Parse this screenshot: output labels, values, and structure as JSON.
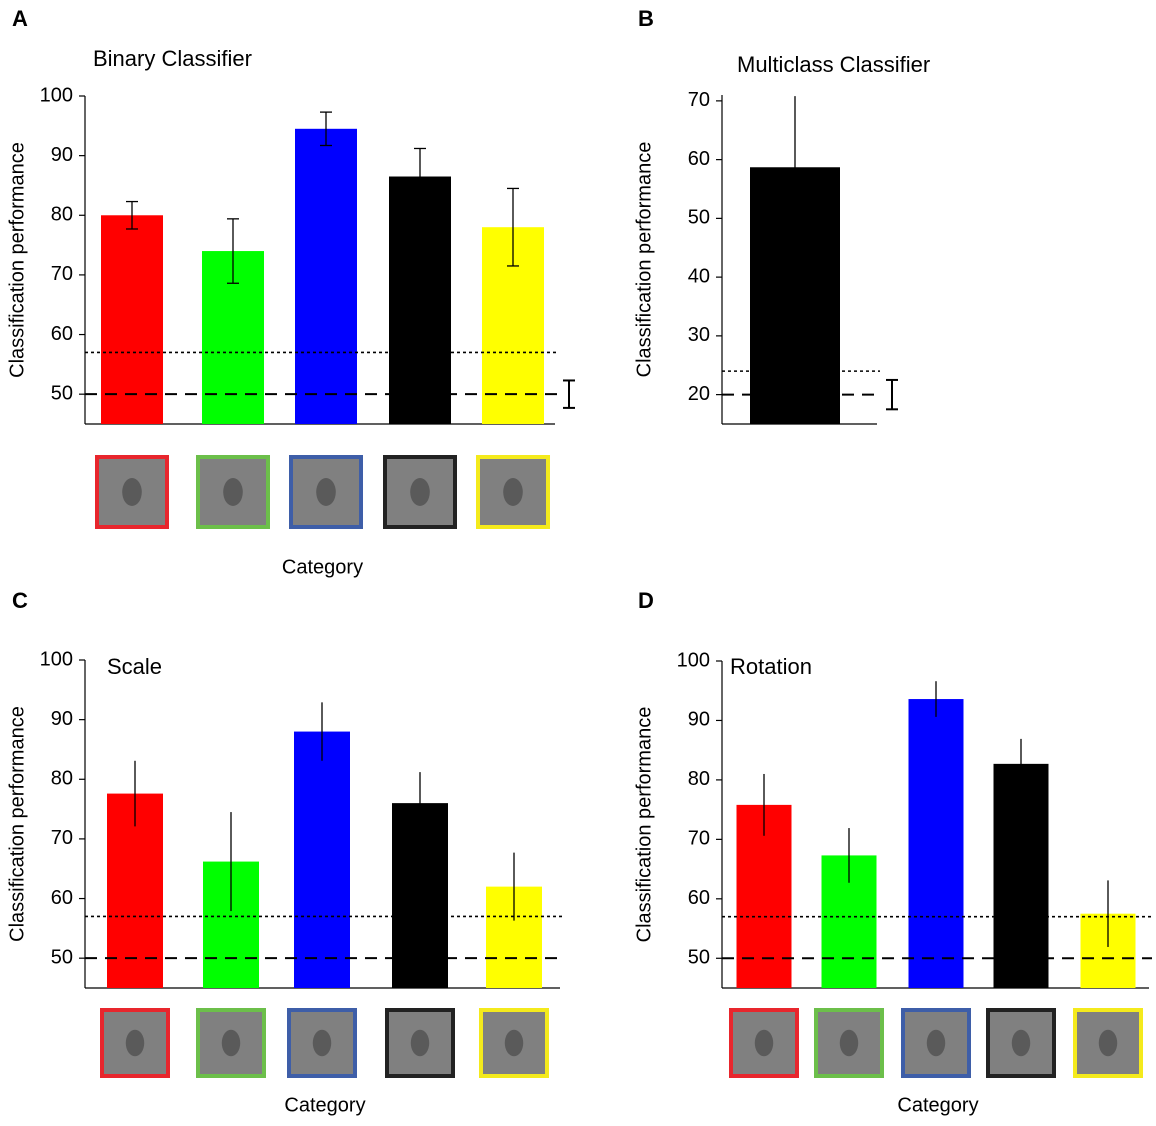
{
  "chart_data": [
    {
      "type": "bar",
      "panel": "A",
      "title": "Binary Classifier",
      "y_label": "Classification performance",
      "x_label": "Category",
      "categories": [
        null,
        null,
        null,
        null,
        null
      ],
      "values": [
        80,
        74,
        94.5,
        86.5,
        78
      ],
      "errors": [
        2.3,
        5.4,
        2.8,
        4.7,
        6.5
      ],
      "colors": [
        "#ff0000",
        "#00ff00",
        "#0000ff",
        "#000000",
        "#ffff00"
      ],
      "thumbnail_borders": [
        "#e8262d",
        "#6cbf4a",
        "#3e5ea8",
        "#222222",
        "#f4ea1c"
      ],
      "ylim": [
        45,
        100
      ],
      "yticks": [
        50,
        60,
        70,
        80,
        90,
        100
      ],
      "reference_lines": [
        {
          "value": 57,
          "style": "dotted"
        },
        {
          "value": 50,
          "style": "dashed"
        }
      ],
      "chance_interval": {
        "value": 50,
        "error": 2.3
      }
    },
    {
      "type": "bar",
      "panel": "B",
      "title": "Multiclass Classifier",
      "y_label": "Classification performance",
      "categories": [
        null
      ],
      "values": [
        58.7
      ],
      "errors": [
        12.1
      ],
      "colors": [
        "#000000"
      ],
      "ylim": [
        15,
        71
      ],
      "yticks": [
        20,
        30,
        40,
        50,
        60,
        70
      ],
      "reference_lines": [
        {
          "value": 24,
          "style": "dotted"
        },
        {
          "value": 20,
          "style": "dashed"
        }
      ],
      "chance_interval": {
        "value": 20,
        "error": 2.5
      }
    },
    {
      "type": "bar",
      "panel": "C",
      "title": "Scale",
      "y_label": "Classification performance",
      "x_label": "Category",
      "categories": [
        null,
        null,
        null,
        null,
        null
      ],
      "values": [
        77.6,
        66.2,
        88,
        76,
        62
      ],
      "errors": [
        5.5,
        8.3,
        4.9,
        5.2,
        5.7
      ],
      "colors": [
        "#ff0000",
        "#00ff00",
        "#0000ff",
        "#000000",
        "#ffff00"
      ],
      "thumbnail_borders": [
        "#e8262d",
        "#6cbf4a",
        "#3e5ea8",
        "#222222",
        "#f4ea1c"
      ],
      "ylim": [
        45,
        100
      ],
      "yticks": [
        50,
        60,
        70,
        80,
        90,
        100
      ],
      "reference_lines": [
        {
          "value": 57,
          "style": "dotted"
        },
        {
          "value": 50,
          "style": "dashed"
        }
      ]
    },
    {
      "type": "bar",
      "panel": "D",
      "title": "Rotation",
      "y_label": "Classification performance",
      "x_label": "Category",
      "categories": [
        null,
        null,
        null,
        null,
        null
      ],
      "values": [
        75.8,
        67.3,
        93.6,
        82.7,
        57.5
      ],
      "errors": [
        5.2,
        4.6,
        3,
        4.2,
        5.6
      ],
      "colors": [
        "#ff0000",
        "#00ff00",
        "#0000ff",
        "#000000",
        "#ffff00"
      ],
      "thumbnail_borders": [
        "#e8262d",
        "#6cbf4a",
        "#3e5ea8",
        "#222222",
        "#f4ea1c"
      ],
      "ylim": [
        45,
        100
      ],
      "yticks": [
        50,
        60,
        70,
        80,
        90,
        100
      ],
      "reference_lines": [
        {
          "value": 57,
          "style": "dotted"
        },
        {
          "value": 50,
          "style": "dashed"
        }
      ]
    }
  ]
}
